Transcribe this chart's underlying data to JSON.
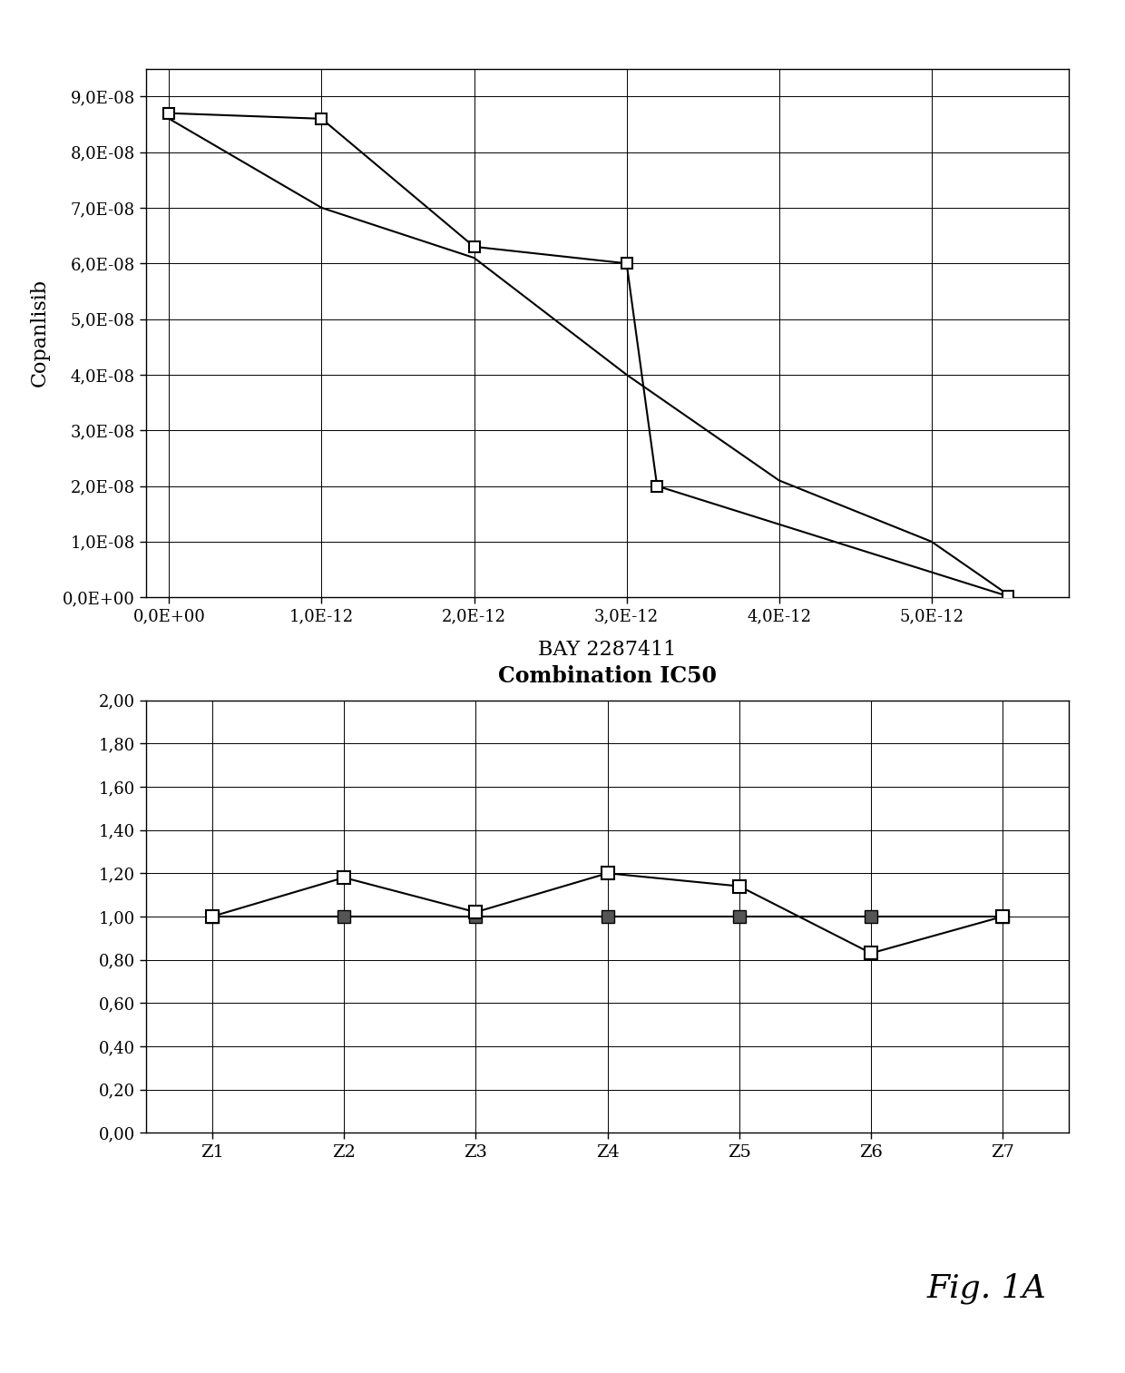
{
  "chart1": {
    "ylabel": "Copanlisib",
    "xlabel": "BAY 2287411",
    "line1_x": [
      0,
      1e-12,
      2e-12,
      3e-12,
      4e-12,
      5e-12,
      5.5e-12
    ],
    "line1_y": [
      8.6e-08,
      7e-08,
      6.1e-08,
      4e-08,
      2.1e-08,
      1e-08,
      5e-10
    ],
    "line2_x": [
      0,
      1e-12,
      2e-12,
      3e-12,
      3.2e-12,
      5.5e-12
    ],
    "line2_y": [
      8.7e-08,
      8.6e-08,
      6.3e-08,
      6e-08,
      2e-08,
      2e-10
    ],
    "xlim": [
      -1.5e-13,
      5.9e-12
    ],
    "ylim": [
      0,
      9.5e-08
    ],
    "xticks": [
      0,
      1e-12,
      2e-12,
      3e-12,
      4e-12,
      5e-12
    ],
    "xtick_labels": [
      "0,0E+00",
      "1,0E-12",
      "2,0E-12",
      "3,0E-12",
      "4,0E-12",
      "5,0E-12"
    ],
    "yticks": [
      0,
      1e-08,
      2e-08,
      3e-08,
      4e-08,
      5e-08,
      6e-08,
      7e-08,
      8e-08,
      9e-08
    ],
    "ytick_labels": [
      "0,0E+00",
      "1,0E-08",
      "2,0E-08",
      "3,0E-08",
      "4,0E-08",
      "5,0E-08",
      "6,0E-08",
      "7,0E-08",
      "8,0E-08",
      "9,0E-08"
    ]
  },
  "chart2": {
    "title": "Combination IC50",
    "categories": [
      "Z1",
      "Z2",
      "Z3",
      "Z4",
      "Z5",
      "Z6",
      "Z7"
    ],
    "line1_y": [
      1.0,
      1.0,
      1.0,
      1.0,
      1.0,
      1.0,
      1.0
    ],
    "line2_y": [
      1.0,
      1.18,
      1.02,
      1.2,
      1.14,
      0.83,
      1.0
    ],
    "ylim": [
      0.0,
      2.0
    ],
    "yticks": [
      0.0,
      0.2,
      0.4,
      0.6,
      0.8,
      1.0,
      1.2,
      1.4,
      1.6,
      1.8,
      2.0
    ],
    "ytick_labels": [
      "0,00",
      "0,20",
      "0,40",
      "0,60",
      "0,80",
      "1,00",
      "1,20",
      "1,40",
      "1,60",
      "1,80",
      "2,00"
    ]
  },
  "fig1A_label": "Fig. 1A",
  "bg_color": "#ffffff",
  "line_color": "#000000"
}
